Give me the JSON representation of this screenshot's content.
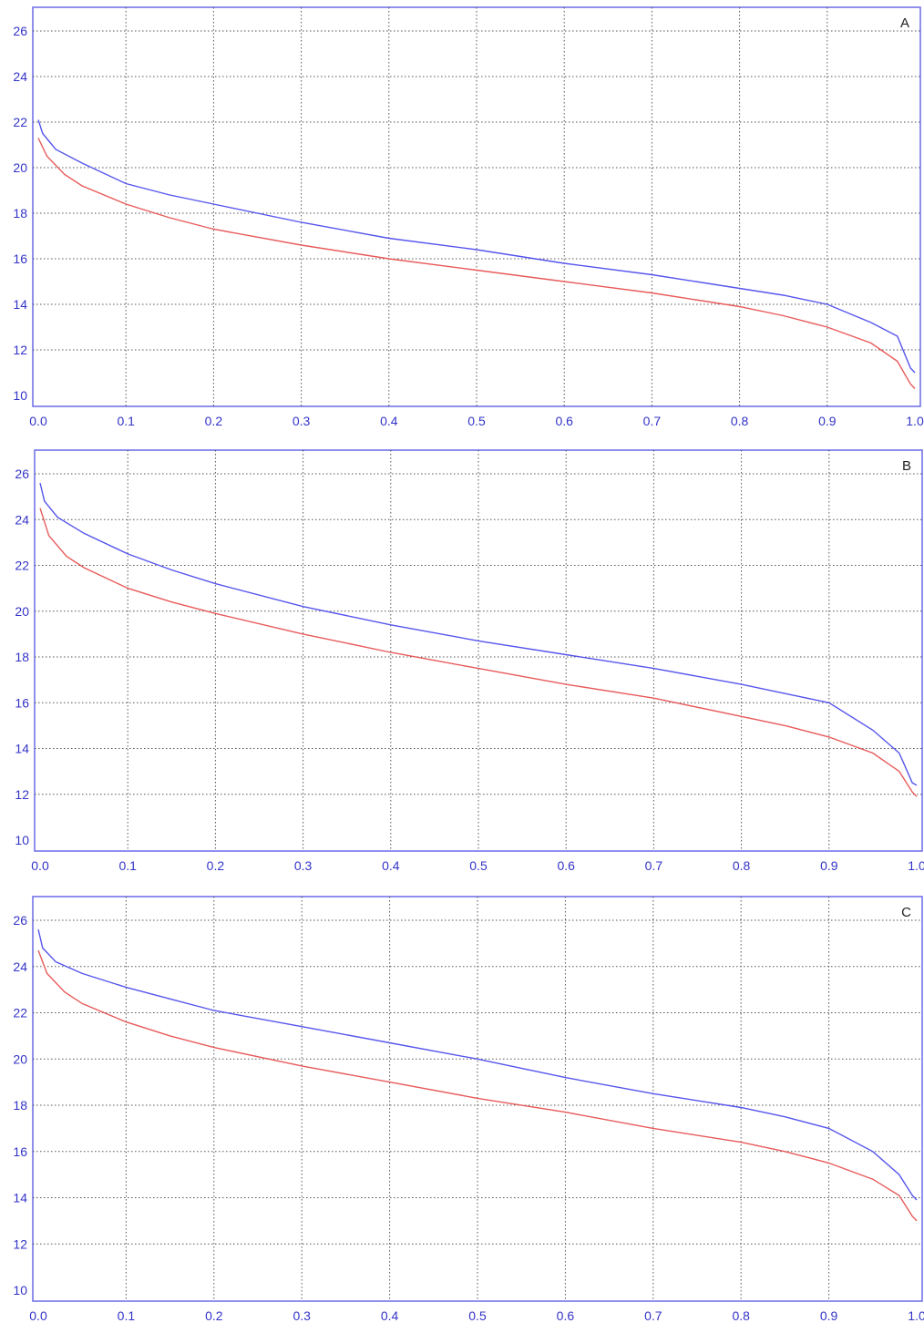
{
  "chart_data": [
    {
      "type": "line",
      "panel_label": "A",
      "xlim": [
        0,
        1
      ],
      "ylim": [
        10,
        26
      ],
      "x_ticks": [
        "0.0",
        "0.1",
        "0.2",
        "0.3",
        "0.4",
        "0.5",
        "0.6",
        "0.7",
        "0.8",
        "0.9",
        "1.0"
      ],
      "y_ticks": [
        "10",
        "12",
        "14",
        "16",
        "18",
        "20",
        "22",
        "24",
        "26"
      ],
      "grid": true,
      "series": [
        {
          "color": "#5555ee",
          "x": [
            0.0,
            0.005,
            0.02,
            0.05,
            0.1,
            0.15,
            0.2,
            0.3,
            0.4,
            0.5,
            0.6,
            0.7,
            0.8,
            0.85,
            0.9,
            0.95,
            0.98,
            0.995,
            1.0
          ],
          "y": [
            22.1,
            21.5,
            20.8,
            20.2,
            19.3,
            18.8,
            18.4,
            17.6,
            16.9,
            16.4,
            15.8,
            15.3,
            14.7,
            14.4,
            14.0,
            13.2,
            12.6,
            11.2,
            11.0
          ]
        },
        {
          "color": "#e85a5a",
          "x": [
            0.0,
            0.01,
            0.03,
            0.05,
            0.1,
            0.15,
            0.2,
            0.3,
            0.4,
            0.5,
            0.6,
            0.7,
            0.8,
            0.85,
            0.9,
            0.95,
            0.98,
            0.995,
            1.0
          ],
          "y": [
            21.3,
            20.5,
            19.7,
            19.2,
            18.4,
            17.8,
            17.3,
            16.6,
            16.0,
            15.5,
            15.0,
            14.5,
            13.9,
            13.5,
            13.0,
            12.3,
            11.5,
            10.5,
            10.3
          ]
        }
      ]
    },
    {
      "type": "line",
      "panel_label": "B",
      "xlim": [
        0,
        1
      ],
      "ylim": [
        10,
        26
      ],
      "x_ticks": [
        "0.0",
        "0.1",
        "0.2",
        "0.3",
        "0.4",
        "0.5",
        "0.6",
        "0.7",
        "0.8",
        "0.9",
        "1.0"
      ],
      "y_ticks": [
        "10",
        "12",
        "14",
        "16",
        "18",
        "20",
        "22",
        "24",
        "26"
      ],
      "grid": true,
      "series": [
        {
          "color": "#5555ee",
          "x": [
            0.0,
            0.005,
            0.02,
            0.05,
            0.1,
            0.15,
            0.2,
            0.3,
            0.4,
            0.5,
            0.6,
            0.7,
            0.8,
            0.85,
            0.9,
            0.95,
            0.98,
            0.995,
            1.0
          ],
          "y": [
            25.6,
            24.8,
            24.1,
            23.4,
            22.5,
            21.8,
            21.2,
            20.2,
            19.4,
            18.7,
            18.1,
            17.5,
            16.8,
            16.4,
            16.0,
            14.8,
            13.8,
            12.5,
            12.4
          ]
        },
        {
          "color": "#e85a5a",
          "x": [
            0.0,
            0.01,
            0.03,
            0.05,
            0.1,
            0.15,
            0.2,
            0.3,
            0.4,
            0.5,
            0.6,
            0.7,
            0.8,
            0.85,
            0.9,
            0.95,
            0.98,
            0.995,
            1.0
          ],
          "y": [
            24.5,
            23.3,
            22.4,
            21.9,
            21.0,
            20.4,
            19.9,
            19.0,
            18.2,
            17.5,
            16.8,
            16.2,
            15.4,
            15.0,
            14.5,
            13.8,
            13.0,
            12.1,
            11.9
          ]
        }
      ]
    },
    {
      "type": "line",
      "panel_label": "C",
      "xlim": [
        0,
        1
      ],
      "ylim": [
        10,
        26
      ],
      "x_ticks": [
        "0.0",
        "0.1",
        "0.2",
        "0.3",
        "0.4",
        "0.5",
        "0.6",
        "0.7",
        "0.8",
        "0.9",
        "1.0"
      ],
      "y_ticks": [
        "10",
        "12",
        "14",
        "16",
        "18",
        "20",
        "22",
        "24",
        "26"
      ],
      "grid": true,
      "series": [
        {
          "color": "#5555ee",
          "x": [
            0.0,
            0.005,
            0.02,
            0.05,
            0.1,
            0.15,
            0.2,
            0.3,
            0.4,
            0.5,
            0.6,
            0.7,
            0.8,
            0.85,
            0.9,
            0.95,
            0.98,
            0.995,
            1.0
          ],
          "y": [
            25.6,
            24.8,
            24.2,
            23.7,
            23.1,
            22.6,
            22.1,
            21.4,
            20.7,
            20.0,
            19.2,
            18.5,
            17.9,
            17.5,
            17.0,
            16.0,
            15.0,
            14.1,
            13.9
          ]
        },
        {
          "color": "#e85a5a",
          "x": [
            0.0,
            0.01,
            0.03,
            0.05,
            0.1,
            0.15,
            0.2,
            0.3,
            0.4,
            0.5,
            0.6,
            0.7,
            0.8,
            0.85,
            0.9,
            0.95,
            0.98,
            0.995,
            1.0
          ],
          "y": [
            24.7,
            23.7,
            22.9,
            22.4,
            21.6,
            21.0,
            20.5,
            19.7,
            19.0,
            18.3,
            17.7,
            17.0,
            16.4,
            16.0,
            15.5,
            14.8,
            14.1,
            13.2,
            13.0
          ]
        }
      ]
    }
  ]
}
